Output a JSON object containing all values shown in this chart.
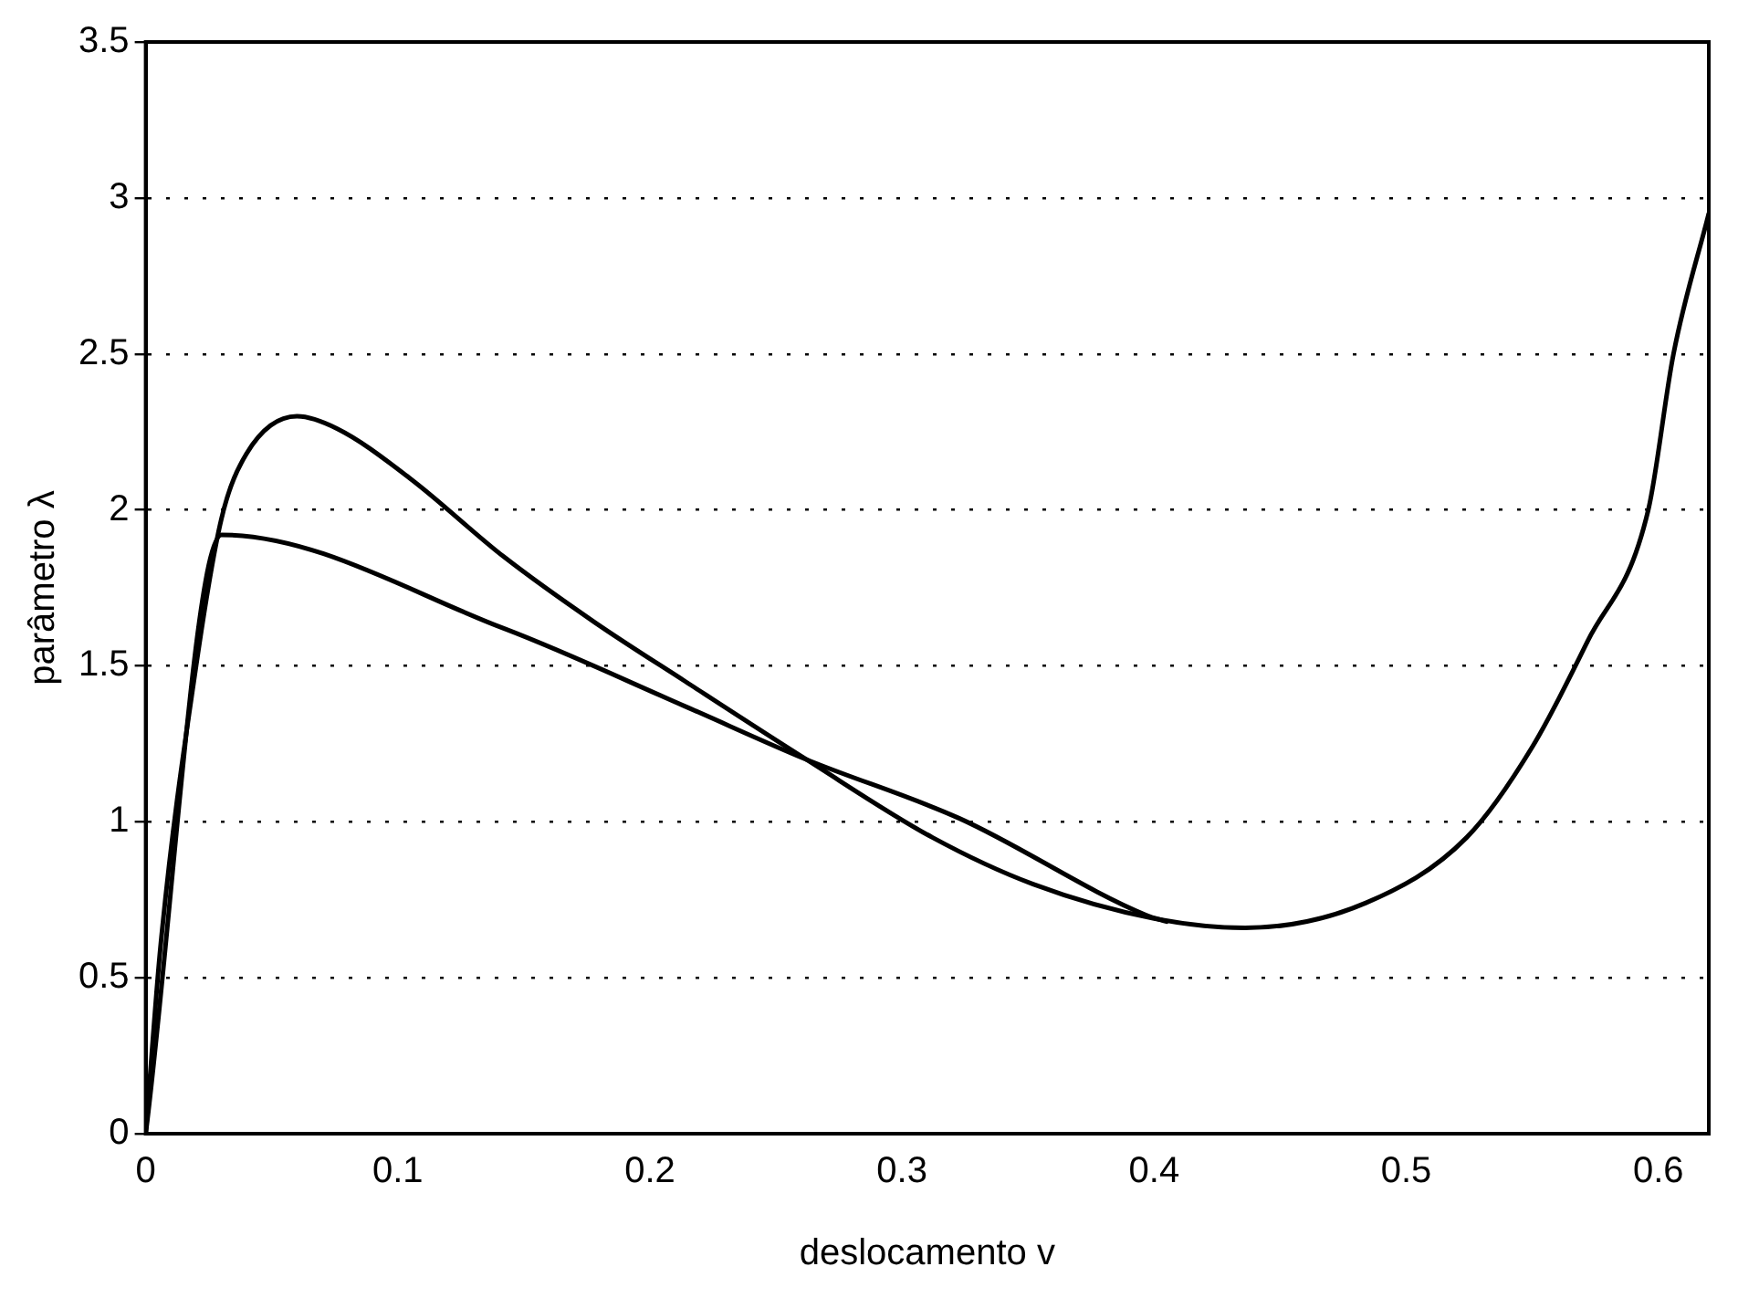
{
  "chart_data": {
    "type": "line",
    "xlabel": "deslocamento v",
    "ylabel": "parâmetro λ",
    "xlim": [
      0,
      0.62
    ],
    "ylim": [
      0,
      3.5
    ],
    "xticks": [
      0,
      0.1,
      0.2,
      0.3,
      0.4,
      0.5,
      0.6
    ],
    "yticks": [
      0,
      0.5,
      1,
      1.5,
      2,
      2.5,
      3,
      3.5
    ],
    "grid": "y",
    "legend": false,
    "marker": "none",
    "line_style": "solid",
    "series": [
      {
        "color": "#000000",
        "x": [
          0,
          0.006,
          0.02,
          0.03,
          0.04,
          0.06,
          0.076,
          0.105,
          0.142,
          0.178,
          0.214,
          0.262,
          0.312,
          0.352,
          0.4,
          0.436,
          0.484,
          0.524,
          0.55,
          0.572,
          0.596,
          0.606,
          0.62
        ],
        "values": [
          0,
          0.61,
          1.5,
          1.97,
          2.18,
          2.3,
          2.26,
          2.1,
          1.85,
          1.64,
          1.45,
          1.2,
          0.95,
          0.8,
          0.69,
          0.66,
          0.74,
          0.95,
          1.24,
          1.58,
          2,
          2.5,
          2.95
        ]
      },
      {
        "color": "#000000",
        "x": [
          0,
          0.03,
          0.142,
          0.214,
          0.262,
          0.323,
          0.397,
          0.405
        ],
        "values": [
          0,
          1.92,
          1.62,
          1.37,
          1.2,
          1.01,
          0.7,
          0.68
        ]
      }
    ]
  }
}
